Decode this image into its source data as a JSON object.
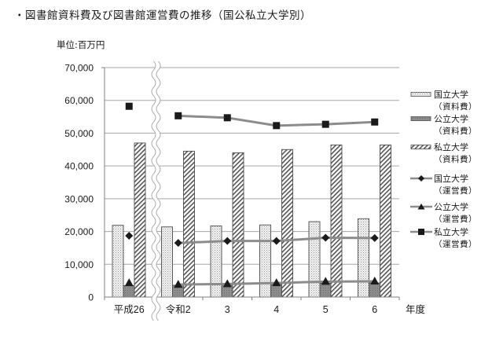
{
  "title": "・図書館資料費及び図書館運営費の推移（国公私立大学別）",
  "unit_label": "単位:百万円",
  "xaxis_suffix": "年度",
  "legend": [
    {
      "line1": "国立大学",
      "line2": "（資料費）",
      "kind": "bar",
      "pattern": "dots"
    },
    {
      "line1": "公立大学",
      "line2": "（資料費）",
      "kind": "bar",
      "pattern": "gray"
    },
    {
      "line1": "私立大学",
      "line2": "（資料費）",
      "kind": "bar",
      "pattern": "hatch"
    },
    {
      "line1": "国立大学",
      "line2": "（運営費）",
      "kind": "line",
      "marker": "diamond"
    },
    {
      "line1": "公立大学",
      "line2": "（運営費）",
      "kind": "line",
      "marker": "triangle"
    },
    {
      "line1": "私立大学",
      "line2": "（運営費）",
      "kind": "line",
      "marker": "square"
    }
  ],
  "colors": {
    "grid": "#a6a6a6",
    "axis": "#808080",
    "line": "#8c8c8c",
    "marker": "#1a1a1a",
    "public_bar": "#8a8a8a",
    "bar_outline": "#4d4d4d"
  },
  "chart_data": {
    "type": "bar",
    "title": "図書館資料費及び図書館運営費の推移（国公私立大学別）",
    "xlabel": "年度",
    "ylabel": "単位:百万円",
    "ylim": [
      0,
      70000
    ],
    "yticks": [
      0,
      10000,
      20000,
      30000,
      40000,
      50000,
      60000,
      70000
    ],
    "ytick_labels": [
      "0",
      "10,000",
      "20,000",
      "30,000",
      "40,000",
      "50,000",
      "60,000",
      "70,000"
    ],
    "grid": true,
    "legend_position": "right",
    "axis_break_after_index": 0,
    "categories": [
      "平成26",
      "令和2",
      "3",
      "4",
      "5",
      "6"
    ],
    "series": [
      {
        "name": "国立大学（資料費）",
        "type": "bar",
        "values": [
          21900,
          21400,
          21700,
          22000,
          23000,
          23900
        ]
      },
      {
        "name": "公立大学（資料費）",
        "type": "bar",
        "values": [
          3500,
          3600,
          3700,
          3900,
          4200,
          4300
        ]
      },
      {
        "name": "私立大学（資料費）",
        "type": "bar",
        "values": [
          47000,
          44500,
          44000,
          45000,
          46400,
          46400
        ]
      },
      {
        "name": "国立大学（運営費）",
        "type": "line",
        "marker": "diamond",
        "values": [
          18700,
          16500,
          17100,
          17100,
          18100,
          18000
        ]
      },
      {
        "name": "公立大学（運営費）",
        "type": "line",
        "marker": "triangle",
        "values": [
          4300,
          3800,
          4000,
          4300,
          4700,
          4800
        ]
      },
      {
        "name": "私立大学（運営費）",
        "type": "line",
        "marker": "square",
        "values": [
          58200,
          55300,
          54700,
          52300,
          52700,
          53400
        ]
      }
    ]
  }
}
